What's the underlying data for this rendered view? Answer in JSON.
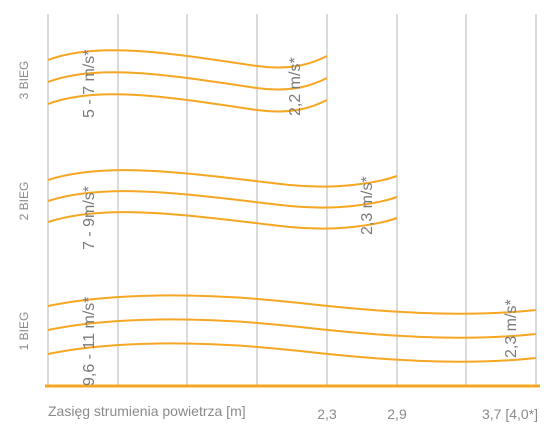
{
  "x_axis": {
    "title": "Zasięg strumienia powietrza [m]",
    "ticks": [
      "2,3",
      "2,9",
      "3,7 [4,0*]"
    ]
  },
  "speeds": [
    {
      "label": "3 BIEG",
      "start_velocity": "5 - 7 m/s*",
      "end_velocity": "2,2 m/s*"
    },
    {
      "label": "2 BIEG",
      "start_velocity": "7 - 9m/s*",
      "end_velocity": "2,3 m/s*"
    },
    {
      "label": "1 BIEG",
      "start_velocity": "9,6 - 11 m/s*",
      "end_velocity": "2,3 m/s*"
    }
  ],
  "colors": {
    "curve": "#f5a623",
    "baseline": "#f5a623",
    "grid": "#b4b4b4",
    "text": "#8a8a8a"
  }
}
